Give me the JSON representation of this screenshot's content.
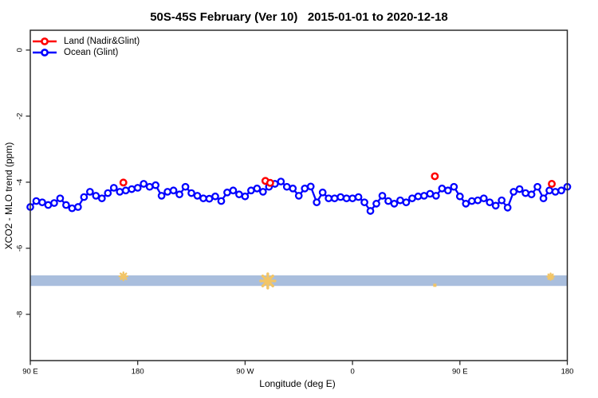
{
  "title": "50S-45S February (Ver 10)   2015-01-01 to 2020-12-18",
  "chart_data": {
    "type": "line",
    "title": "50S-45S February (Ver 10)   2015-01-01 to 2020-12-18",
    "xlabel": "Longitude (deg E)",
    "ylabel": "XCO2 - MLO trend (ppm)",
    "xlim": [
      90,
      540
    ],
    "ylim": [
      -9.4,
      0.6
    ],
    "grid": false,
    "legend_position": "top-left",
    "x_ticks": [
      {
        "lon": 90,
        "label": "90 E"
      },
      {
        "lon": 180,
        "label": "180"
      },
      {
        "lon": 270,
        "label": "90 W"
      },
      {
        "lon": 360,
        "label": "0"
      },
      {
        "lon": 450,
        "label": "90 E"
      },
      {
        "lon": 540,
        "label": "180"
      }
    ],
    "y_ticks": [
      0,
      -2,
      -4,
      -6,
      -8
    ],
    "legend": [
      {
        "label": "Land (Nadir&Glint)",
        "color": "#ff0000"
      },
      {
        "label": "Ocean (Glint)",
        "color": "#0000ff"
      }
    ],
    "series": [
      {
        "name": "Land (Nadir&Glint)",
        "color": "#ff0000",
        "points": [
          {
            "lon": 168,
            "value": -4.01
          },
          {
            "lon": 287,
            "value": -3.96
          },
          {
            "lon": 291,
            "value": -4.02
          },
          {
            "lon": 429,
            "value": -3.82
          },
          {
            "lon": 527,
            "value": -4.05
          }
        ]
      },
      {
        "name": "Ocean (Glint)",
        "color": "#0000ff",
        "lons": [
          90,
          95,
          100,
          105,
          110,
          115,
          120,
          125,
          130,
          135,
          140,
          145,
          150,
          155,
          160,
          165,
          170,
          175,
          180,
          185,
          190,
          195,
          200,
          205,
          210,
          215,
          220,
          225,
          230,
          235,
          240,
          245,
          250,
          255,
          260,
          265,
          270,
          275,
          280,
          285,
          290,
          295,
          300,
          305,
          310,
          315,
          320,
          325,
          330,
          335,
          340,
          345,
          350,
          355,
          360,
          365,
          370,
          375,
          380,
          385,
          390,
          395,
          400,
          405,
          410,
          415,
          420,
          425,
          430,
          435,
          440,
          445,
          450,
          455,
          460,
          465,
          470,
          475,
          480,
          485,
          490,
          495,
          500,
          505,
          510,
          515,
          520,
          525,
          530,
          535,
          540
        ],
        "values": [
          -4.75,
          -4.57,
          -4.61,
          -4.69,
          -4.63,
          -4.49,
          -4.69,
          -4.79,
          -4.75,
          -4.45,
          -4.29,
          -4.41,
          -4.49,
          -4.33,
          -4.17,
          -4.29,
          -4.25,
          -4.21,
          -4.17,
          -4.05,
          -4.14,
          -4.09,
          -4.41,
          -4.29,
          -4.25,
          -4.37,
          -4.14,
          -4.33,
          -4.41,
          -4.49,
          -4.5,
          -4.43,
          -4.57,
          -4.31,
          -4.25,
          -4.37,
          -4.43,
          -4.25,
          -4.19,
          -4.29,
          -4.14,
          -4.05,
          -3.98,
          -4.14,
          -4.19,
          -4.41,
          -4.19,
          -4.13,
          -4.61,
          -4.31,
          -4.49,
          -4.49,
          -4.45,
          -4.49,
          -4.49,
          -4.45,
          -4.61,
          -4.87,
          -4.65,
          -4.41,
          -4.57,
          -4.65,
          -4.55,
          -4.61,
          -4.49,
          -4.43,
          -4.41,
          -4.35,
          -4.41,
          -4.19,
          -4.25,
          -4.14,
          -4.43,
          -4.65,
          -4.57,
          -4.55,
          -4.49,
          -4.61,
          -4.71,
          -4.55,
          -4.77,
          -4.29,
          -4.21,
          -4.33,
          -4.37,
          -4.14,
          -4.49,
          -4.25,
          -4.29,
          -4.25,
          -4.14
        ]
      }
    ],
    "band": {
      "y_top": -6.82,
      "y_bottom": -7.14,
      "color": "#a9bedd"
    },
    "markers": [
      {
        "lon": 168,
        "value": -6.85,
        "shape": "asterisk",
        "size": 5
      },
      {
        "lon": 289,
        "value": -6.99,
        "shape": "asterisk",
        "size": 9
      },
      {
        "lon": 429,
        "value": -7.12,
        "shape": "dot",
        "size": 2
      },
      {
        "lon": 526,
        "value": -6.86,
        "shape": "asterisk",
        "size": 4
      }
    ],
    "marker_color": "#f2c566",
    "frame_color": "#2b2b2b"
  }
}
